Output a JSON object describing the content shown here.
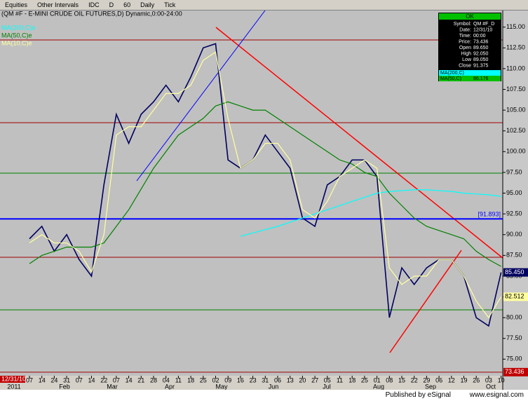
{
  "toolbar": [
    "Equities",
    "Other Intervals",
    "IDC",
    "D",
    "60",
    "Daily",
    "Tick"
  ],
  "footer": {
    "publisher": "Published by eSignal",
    "url": "www.esignal.com"
  },
  "chart_data": {
    "type": "line",
    "title": "(QM #F - E-MINI CRUDE OIL FUTURES,D) Dynamic,0:00-24:00",
    "categories": [
      "07",
      "14",
      "24",
      "31",
      "07",
      "14",
      "22",
      "07",
      "14",
      "21",
      "28",
      "04",
      "11",
      "18",
      "25",
      "02",
      "09",
      "16",
      "23",
      "31",
      "06",
      "13",
      "20",
      "27",
      "05",
      "11",
      "18",
      "25",
      "01",
      "08",
      "15",
      "22",
      "29",
      "06",
      "12",
      "19",
      "26",
      "03",
      "10"
    ],
    "months": [
      "2011",
      "Feb",
      "Mar",
      "Apr",
      "May",
      "Jun",
      "Jul",
      "Aug",
      "Sep",
      "Oct"
    ],
    "series": [
      {
        "name": "Price",
        "color": "#000060",
        "values": [
          89.5,
          91,
          88,
          90,
          87,
          85,
          96,
          104.5,
          101,
          104.5,
          106,
          108,
          106,
          109,
          112.5,
          113,
          99,
          98,
          99,
          102,
          100,
          98,
          92,
          91,
          96,
          97,
          99,
          99,
          97,
          80,
          86,
          84,
          86,
          87,
          87,
          85,
          80,
          79,
          85.45
        ],
        "badge": "85.450"
      },
      {
        "name": "MA(200,C)e",
        "color": "#00ffff",
        "values": [
          null,
          null,
          null,
          null,
          null,
          null,
          null,
          null,
          null,
          null,
          null,
          null,
          null,
          null,
          null,
          null,
          null,
          89.8,
          90.2,
          90.6,
          91,
          91.5,
          92,
          92.5,
          93,
          93.5,
          94,
          94.5,
          95,
          95.2,
          95.3,
          95.4,
          95.4,
          95.3,
          95.2,
          95,
          94.9,
          94.8,
          94.6
        ]
      },
      {
        "name": "MA(50,C)e",
        "color": "#008000",
        "values": [
          86.5,
          87.5,
          88,
          88.5,
          88.5,
          88.5,
          89,
          91,
          93,
          95.5,
          98,
          100,
          102,
          103,
          104,
          105.5,
          106,
          105.5,
          105,
          105,
          104,
          103,
          102,
          101,
          100,
          99,
          98.5,
          97.5,
          97,
          95,
          93.5,
          92,
          91,
          90.5,
          90,
          89.5,
          88,
          87,
          86.176
        ]
      },
      {
        "name": "MA(10,C)e",
        "color": "#ffffa0",
        "values": [
          89,
          90,
          89,
          89,
          88,
          85.5,
          90,
          102,
          103,
          103,
          105,
          107,
          107,
          108,
          111,
          112,
          104,
          98,
          99,
          101,
          101,
          99,
          93,
          92,
          94,
          97,
          98,
          99,
          98,
          86,
          84,
          85,
          85,
          87,
          87,
          85,
          82,
          80,
          82.512
        ],
        "badge": "82.512"
      }
    ],
    "ylim": [
      73,
      117
    ],
    "yticks": [
      {
        "value": 75,
        "label": "75.00"
      },
      {
        "value": 77.5,
        "label": "77.50"
      },
      {
        "value": 80,
        "label": "80.00"
      },
      {
        "value": 82.5,
        "label": "82.50"
      },
      {
        "value": 85,
        "label": "85.00"
      },
      {
        "value": 87.5,
        "label": "87.50"
      },
      {
        "value": 90,
        "label": "90.00"
      },
      {
        "value": 92.5,
        "label": "92.50"
      },
      {
        "value": 95,
        "label": "95.00"
      },
      {
        "value": 97.5,
        "label": "97.50"
      },
      {
        "value": 100,
        "label": "100.00"
      },
      {
        "value": 102.5,
        "label": "102.50"
      },
      {
        "value": 105,
        "label": "105.00"
      },
      {
        "value": 107.5,
        "label": "107.50"
      },
      {
        "value": 110,
        "label": "110.00"
      },
      {
        "value": 112.5,
        "label": "112.50"
      },
      {
        "value": 115,
        "label": "115.00"
      }
    ],
    "reference_line": {
      "value": 91.893,
      "label": "[91.893]",
      "color": "#0000ff"
    },
    "cursor": {
      "value": 73.436,
      "label": "73.436",
      "date": "12/31/10"
    },
    "data_window": {
      "header": "OK",
      "rows": [
        {
          "label": "Symbol:",
          "value": "QM #F_D"
        },
        {
          "label": "Date:",
          "value": "12/31/10"
        },
        {
          "label": "Time:",
          "value": "00:00"
        },
        {
          "label": "Price:",
          "value": "73.436"
        },
        {
          "label": "Open",
          "value": "89.650"
        },
        {
          "label": "High",
          "value": "92.050"
        },
        {
          "label": "Low",
          "value": "89.050"
        },
        {
          "label": "Close",
          "value": "91.375"
        }
      ],
      "studies": [
        {
          "label": "MA(200,C)",
          "value": "",
          "color": "#00ffff"
        },
        {
          "label": "MA(50,C)",
          "value": "86.176",
          "color": "#00c000"
        }
      ]
    }
  }
}
